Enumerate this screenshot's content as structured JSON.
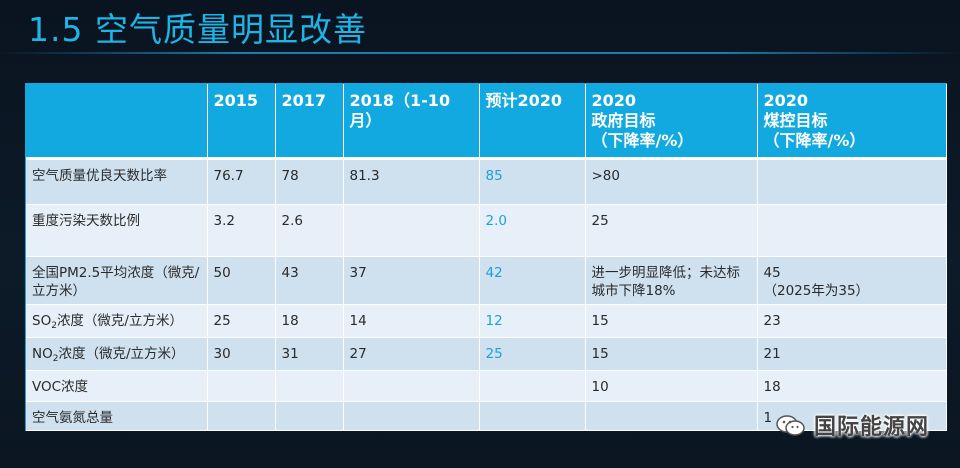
{
  "title": "1.5 空气质量明显改善",
  "table": {
    "headers": [
      "",
      "2015",
      "2017",
      "2018（1-10月）",
      "预计2020",
      "2020\n政府目标\n（下降率/%）",
      "2020\n煤控目标\n（下降率/%）"
    ],
    "rows": [
      {
        "label": "空气质量优良天数比率",
        "label_sub": "",
        "label_tail": "",
        "v2015": "76.7",
        "v2017": "78",
        "v2018": "81.3",
        "proj": "85",
        "gov": ">80",
        "coal": ""
      },
      {
        "label": "重度污染天数比例",
        "label_sub": "",
        "label_tail": "",
        "v2015": "3.2",
        "v2017": "2.6",
        "v2018": "",
        "proj": "2.0",
        "gov": "25",
        "coal": ""
      },
      {
        "label": "全国PM2.5平均浓度（微克/立方米）",
        "label_sub": "",
        "label_tail": "",
        "v2015": "50",
        "v2017": "43",
        "v2018": "37",
        "proj": "42",
        "gov": "进一步明显降低；未达标城市下降18%",
        "coal": "45\n（2025年为35）"
      },
      {
        "label": "SO",
        "label_sub": "2",
        "label_tail": "浓度（微克/立方米）",
        "v2015": "25",
        "v2017": "18",
        "v2018": "14",
        "proj": "12",
        "gov": "15",
        "coal": "23"
      },
      {
        "label": "NO",
        "label_sub": "2",
        "label_tail": "浓度（微克/立方米）",
        "v2015": "30",
        "v2017": "31",
        "v2018": "27",
        "proj": "25",
        "gov": "15",
        "coal": "21"
      },
      {
        "label": "VOC浓度",
        "label_sub": "",
        "label_tail": "",
        "v2015": "",
        "v2017": "",
        "v2018": "",
        "proj": "",
        "gov": "10",
        "coal": "18"
      },
      {
        "label": "空气氨氮总量",
        "label_sub": "",
        "label_tail": "",
        "v2015": "",
        "v2017": "",
        "v2018": "",
        "proj": "",
        "gov": "",
        "coal": "1"
      }
    ]
  },
  "watermark": {
    "text": "国际能源网",
    "icon": "wechat-icon"
  }
}
